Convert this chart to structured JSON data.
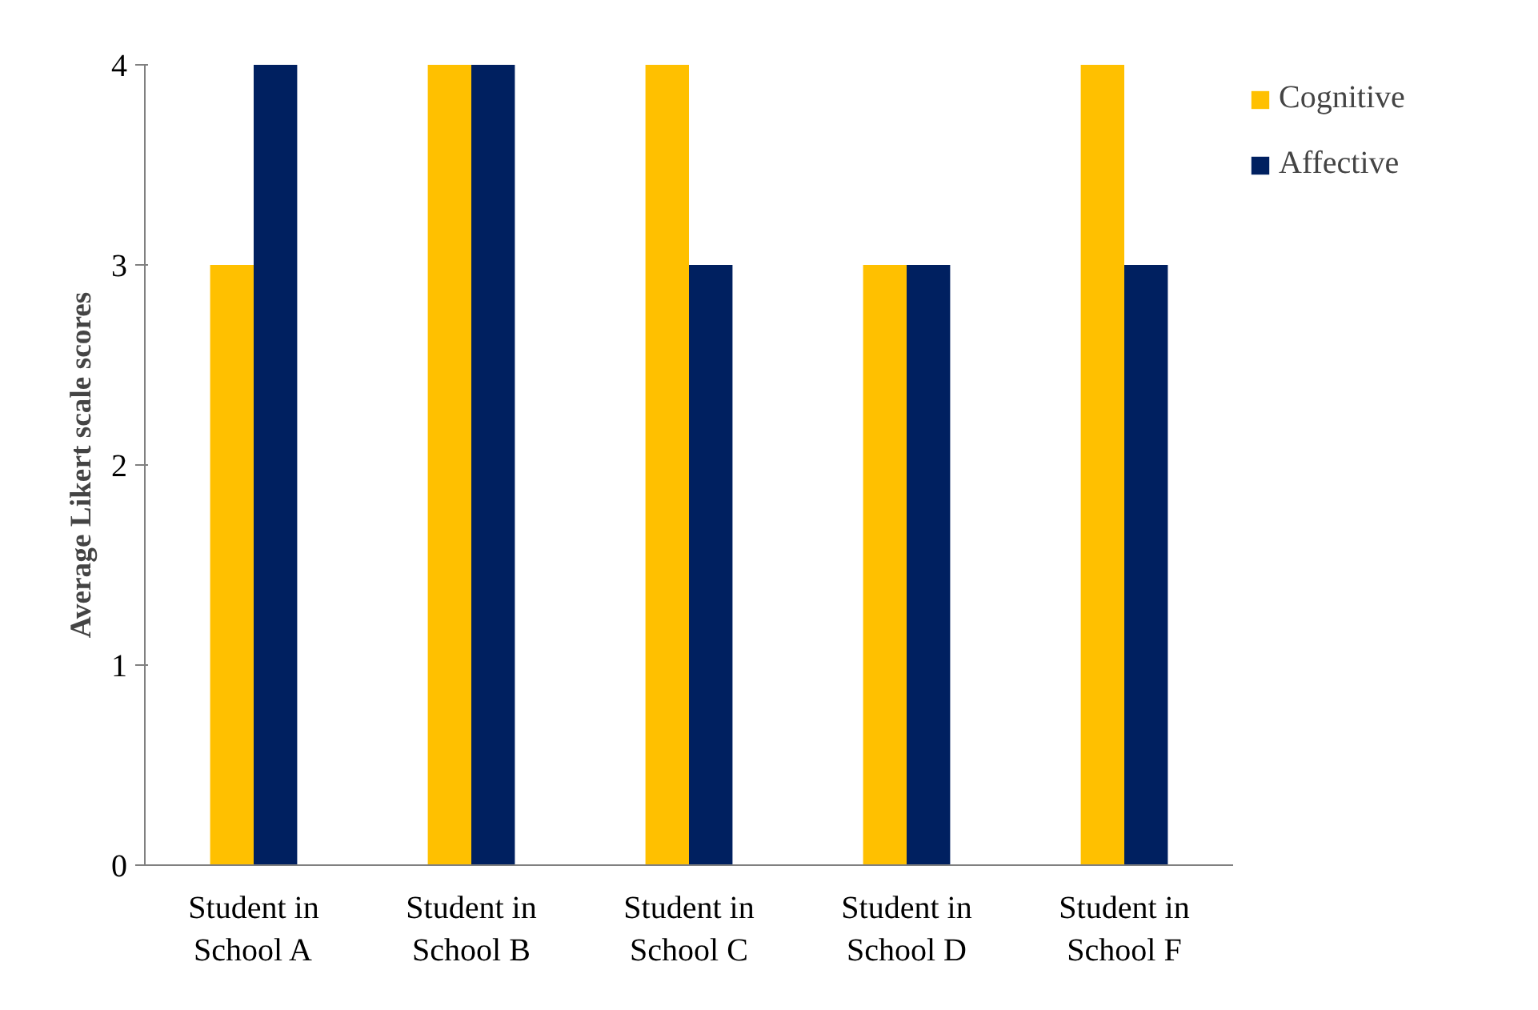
{
  "chart_data": {
    "type": "bar",
    "ylabel": "Average Likert scale scores",
    "categories": [
      "Student in School A",
      "Student in School B",
      "Student in School C",
      "Student in School D",
      "Student in School F"
    ],
    "series": [
      {
        "name": "Cognitive",
        "color": "#ffc000",
        "values": [
          3,
          4,
          4,
          3,
          4
        ]
      },
      {
        "name": "Affective",
        "color": "#002060",
        "values": [
          4,
          4,
          3,
          3,
          3
        ]
      }
    ],
    "ylim": [
      0,
      4
    ],
    "yticks": [
      0,
      1,
      2,
      3,
      4
    ],
    "grid": false,
    "legend": "top right"
  }
}
